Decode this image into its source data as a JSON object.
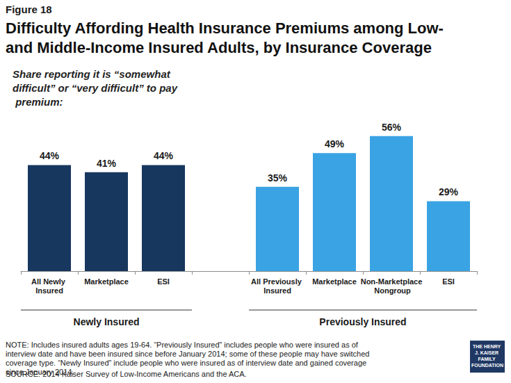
{
  "chart_data": {
    "type": "bar",
    "figure_label": "Figure 18",
    "title": "Difficulty Affording Health Insurance Premiums among Low- and Middle-Income Insured Adults, by Insurance Coverage",
    "subtitle": "Share reporting it is “somewhat difficult” or “very difficult” to pay premium:",
    "groups": [
      {
        "label": "Newly Insured",
        "categories": [
          "All Newly Insured",
          "Marketplace",
          "ESI"
        ],
        "values": [
          44,
          41,
          44
        ],
        "value_labels": [
          "44%",
          "41%",
          "44%"
        ],
        "color": "#17375e"
      },
      {
        "label": "Previously Insured",
        "categories": [
          "All Previously Insured",
          "Marketplace",
          "Non-Marketplace Nongroup",
          "ESI"
        ],
        "values": [
          35,
          49,
          56,
          29
        ],
        "value_labels": [
          "35%",
          "49%",
          "56%",
          "29%"
        ],
        "color": "#3aa3e3"
      }
    ],
    "ylim": [
      0,
      60
    ],
    "grid": false,
    "tick_labels": "x",
    "data_labels": true,
    "note": "NOTE: Includes insured adults ages 19-64. “Previously Insured” includes people who were insured as of interview date and have been insured since before January 2014; some of these people may have switched coverage type. “Newly Insured” include people who were insured as of interview date and gained coverage since January 2014.",
    "source": "SOURCE: 2014 Kaiser Survey of Low-Income Americans and the ACA.",
    "logo": "THE HENRY J. KAISER FAMILY FOUNDATION"
  }
}
